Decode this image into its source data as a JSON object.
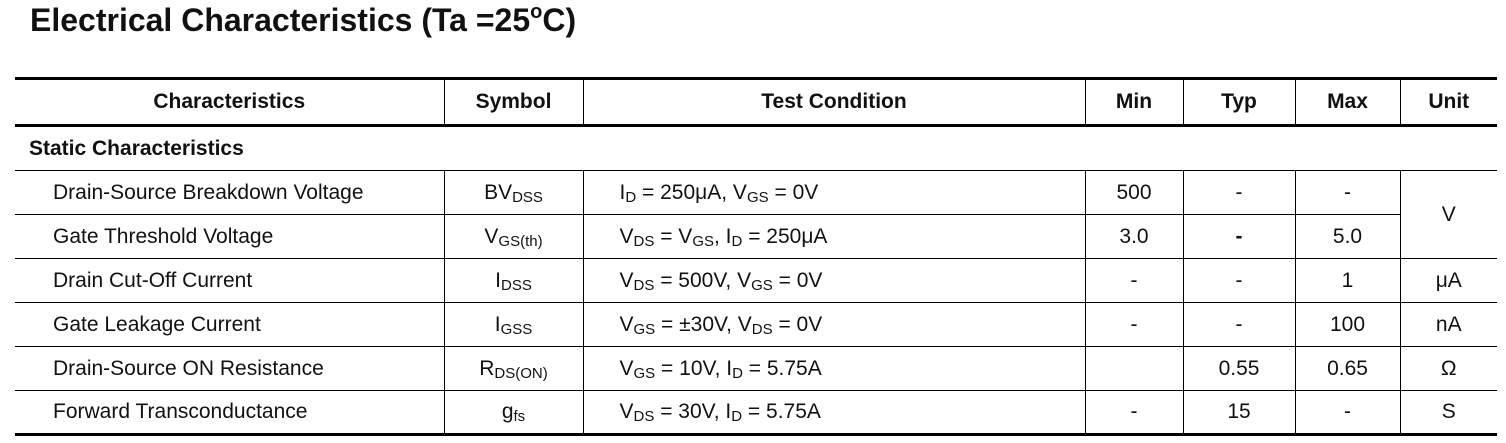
{
  "title": {
    "main": "Electrical Characteristics (Ta =25",
    "degree": "o",
    "unit_end": "C)"
  },
  "table": {
    "headers": {
      "characteristics": "Characteristics",
      "symbol": "Symbol",
      "test_condition": "Test Condition",
      "min": "Min",
      "typ": "Typ",
      "max": "Max",
      "unit": "Unit"
    },
    "section": "Static Characteristics",
    "rows": [
      {
        "characteristic": "Drain-Source Breakdown Voltage",
        "symbol": {
          "base": "BV",
          "sub": "DSS"
        },
        "condition": {
          "t1": "I",
          "s1": "D",
          "t2": " = 250μA, V",
          "s2": "GS",
          "t3": " = 0V"
        },
        "min": "500",
        "typ": "-",
        "max": "-",
        "unit": "V"
      },
      {
        "characteristic": "Gate Threshold Voltage",
        "symbol": {
          "base": "V",
          "sub": "GS(th)"
        },
        "condition": {
          "t1": "V",
          "s1": "DS",
          "t2": " = V",
          "s2": "GS",
          "t3": ", I",
          "s3": "D",
          "t4": " = 250μA"
        },
        "min": "3.0",
        "typ": "-",
        "max": "5.0"
      },
      {
        "characteristic": "Drain Cut-Off Current",
        "symbol": {
          "base": "I",
          "sub": "DSS"
        },
        "condition": {
          "t1": "V",
          "s1": "DS",
          "t2": " = 500V, V",
          "s2": "GS",
          "t3": " = 0V"
        },
        "min": "-",
        "typ": "-",
        "max": "1",
        "unit": "μA"
      },
      {
        "characteristic": "Gate Leakage Current",
        "symbol": {
          "base": "I",
          "sub": "GSS"
        },
        "condition": {
          "t1": "V",
          "s1": "GS",
          "t2": " = ±30V, V",
          "s2": "DS",
          "t3": " = 0V"
        },
        "min": "-",
        "typ": "-",
        "max": "100",
        "unit": "nA"
      },
      {
        "characteristic": "Drain-Source ON Resistance",
        "symbol": {
          "base": "R",
          "sub": "DS(ON)"
        },
        "condition": {
          "t1": "V",
          "s1": "GS",
          "t2": " = 10V, I",
          "s2": "D",
          "t3": " = 5.75A"
        },
        "min": "",
        "typ": "0.55",
        "max": "0.65",
        "unit": "Ω"
      },
      {
        "characteristic": "Forward Transconductance",
        "symbol": {
          "base": "g",
          "sub": "fs"
        },
        "condition": {
          "t1": "V",
          "s1": "DS",
          "t2": " = 30V, I",
          "s2": "D",
          "t3": " = 5.75A"
        },
        "min": "-",
        "typ": "15",
        "max": "-",
        "unit": "S"
      }
    ]
  }
}
